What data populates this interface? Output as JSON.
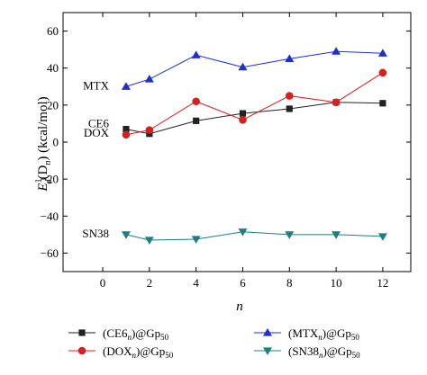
{
  "chart_data": {
    "type": "line",
    "x_label": "n",
    "y_label": {
      "main": "E",
      "main_sub": "d",
      "main_sup": "1",
      "mid": "(D",
      "mid_sub": "n",
      "tail": ") (kcal/mol)"
    },
    "xlim": [
      -1.7,
      13.2
    ],
    "ylim": [
      -70,
      70
    ],
    "x_ticks": [
      0,
      2,
      4,
      6,
      8,
      10,
      12
    ],
    "y_ticks": [
      -60,
      -40,
      -20,
      0,
      20,
      40,
      60
    ],
    "x": [
      1,
      2,
      4,
      6,
      8,
      10,
      12
    ],
    "series": [
      {
        "key": "ce6",
        "label": "CE6",
        "legend": {
          "pre": "(CE6",
          "sub": "n",
          "mid": ")@Gp",
          "sub2": "50"
        },
        "color": "#222222",
        "marker": "square",
        "values": [
          7,
          4.5,
          11.5,
          15.5,
          18,
          21.5,
          21
        ]
      },
      {
        "key": "dox",
        "label": "DOX",
        "legend": {
          "pre": "(DOX",
          "sub": "n",
          "mid": ")@Gp",
          "sub2": "50"
        },
        "color": "#d42020",
        "marker": "circle",
        "values": [
          4,
          6.5,
          22,
          12,
          25,
          21.5,
          37.5
        ]
      },
      {
        "key": "mtx",
        "label": "MTX",
        "legend": {
          "pre": "(MTX",
          "sub": "n",
          "mid": ")@Gp",
          "sub2": "50"
        },
        "color": "#1f2fc8",
        "marker": "triangle-up",
        "values": [
          30,
          34,
          47,
          40.5,
          45,
          49,
          48
        ]
      },
      {
        "key": "sn38",
        "label": "SN38",
        "legend": {
          "pre": "(SN38",
          "sub": "n",
          "mid": ")@Gp",
          "sub2": "50"
        },
        "color": "#1f7f7f",
        "marker": "triangle-down",
        "values": [
          -50,
          -53,
          -52.5,
          -48.5,
          -50,
          -50,
          -51
        ]
      }
    ]
  }
}
